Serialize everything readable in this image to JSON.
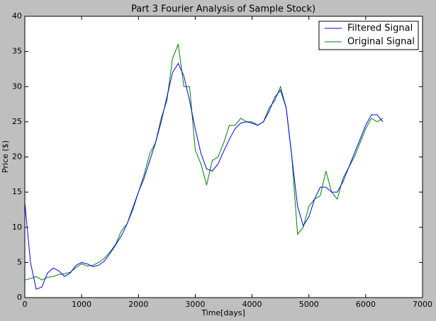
{
  "chart_data": {
    "type": "line",
    "title": "Part 3 Fourier Analysis of Sample Stock)",
    "x_label": "Time[days]",
    "y_label": "Price ($)",
    "x": [
      0,
      100,
      200,
      300,
      400,
      500,
      600,
      700,
      800,
      900,
      1000,
      1100,
      1200,
      1300,
      1400,
      1500,
      1600,
      1700,
      1800,
      1900,
      2000,
      2100,
      2200,
      2300,
      2400,
      2500,
      2600,
      2700,
      2800,
      2900,
      3000,
      3100,
      3200,
      3300,
      3400,
      3500,
      3600,
      3700,
      3800,
      3900,
      4000,
      4100,
      4200,
      4300,
      4400,
      4500,
      4600,
      4700,
      4800,
      4900,
      5000,
      5100,
      5200,
      5300,
      5400,
      5500,
      5600,
      5700,
      5800,
      5900,
      6000,
      6100,
      6200,
      6300
    ],
    "series": [
      {
        "name": "Filtered Signal",
        "color": "#0000ff",
        "values": [
          13.5,
          5,
          1.2,
          1.5,
          3.5,
          4.2,
          3.8,
          3.0,
          3.5,
          4.6,
          5.0,
          4.8,
          4.4,
          4.6,
          5.2,
          6.3,
          7.5,
          8.8,
          10.5,
          12.5,
          15,
          17,
          19.5,
          22,
          25,
          28.5,
          32,
          33.3,
          31.5,
          28,
          24,
          20.5,
          18.3,
          18,
          19,
          20.8,
          22.5,
          24,
          24.8,
          25,
          24.8,
          24.5,
          25,
          26.5,
          28.5,
          29.5,
          27,
          20,
          13,
          10.2,
          11.5,
          14,
          15.7,
          15.7,
          15,
          15,
          16.5,
          18.5,
          20.5,
          22.5,
          24.5,
          26,
          26,
          25
        ]
      },
      {
        "name": "Original Signal",
        "color": "#008000",
        "values": [
          2.5,
          2.7,
          3.0,
          2.5,
          2.9,
          3.0,
          3.3,
          3.4,
          3.6,
          4.3,
          4.8,
          4.5,
          4.6,
          5.0,
          5.6,
          6.5,
          7.6,
          9.5,
          10.5,
          12.8,
          15,
          17.5,
          20.5,
          22,
          25.5,
          28,
          34,
          36,
          30,
          30,
          21,
          19,
          16,
          19.5,
          20,
          22,
          24.5,
          24.5,
          25.5,
          25,
          25,
          24.5,
          25,
          27,
          28,
          30,
          27,
          20,
          9,
          10,
          13,
          14,
          14.5,
          18,
          15,
          14,
          17,
          18.5,
          20,
          22,
          24,
          25.5,
          25,
          25.5
        ]
      }
    ],
    "xlim": [
      0,
      7000
    ],
    "xticks": [
      0,
      1000,
      2000,
      3000,
      4000,
      5000,
      6000,
      7000
    ],
    "ylim": [
      0,
      40
    ],
    "yticks": [
      0,
      5,
      10,
      15,
      20,
      25,
      30,
      35,
      40
    ],
    "legend": "upper right"
  }
}
